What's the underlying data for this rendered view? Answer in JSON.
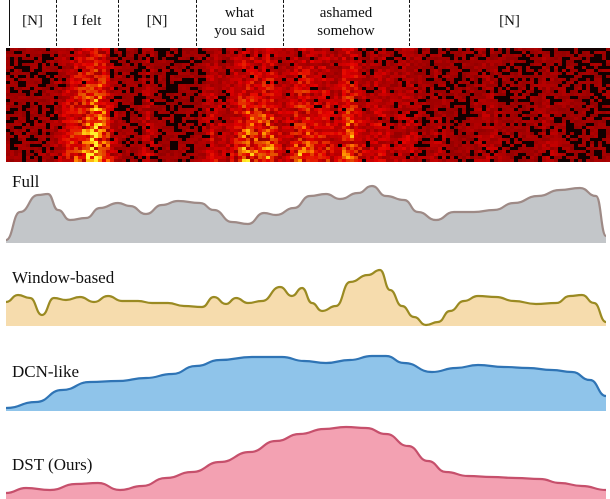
{
  "header": {
    "segments": [
      "[N]",
      "I felt",
      "[N]",
      "what\nyou said",
      "ashamed\nsomehow",
      "[N]"
    ]
  },
  "tracks": [
    {
      "label": "Full",
      "fill": "#c3c6c9",
      "stroke": "#9e8a86"
    },
    {
      "label": "Window-based",
      "fill": "#f6dcad",
      "stroke": "#9a8a22"
    },
    {
      "label": "DCN-like",
      "fill": "#8fc4ea",
      "stroke": "#2f74b5"
    },
    {
      "label": "DST (Ours)",
      "fill": "#f3a1b2",
      "stroke": "#c6506c"
    }
  ],
  "colors": {
    "spectrogram_bg": "#120000",
    "spectrogram_hot": "#ff7a00",
    "spectrogram_peak": "#ffd84a"
  }
}
